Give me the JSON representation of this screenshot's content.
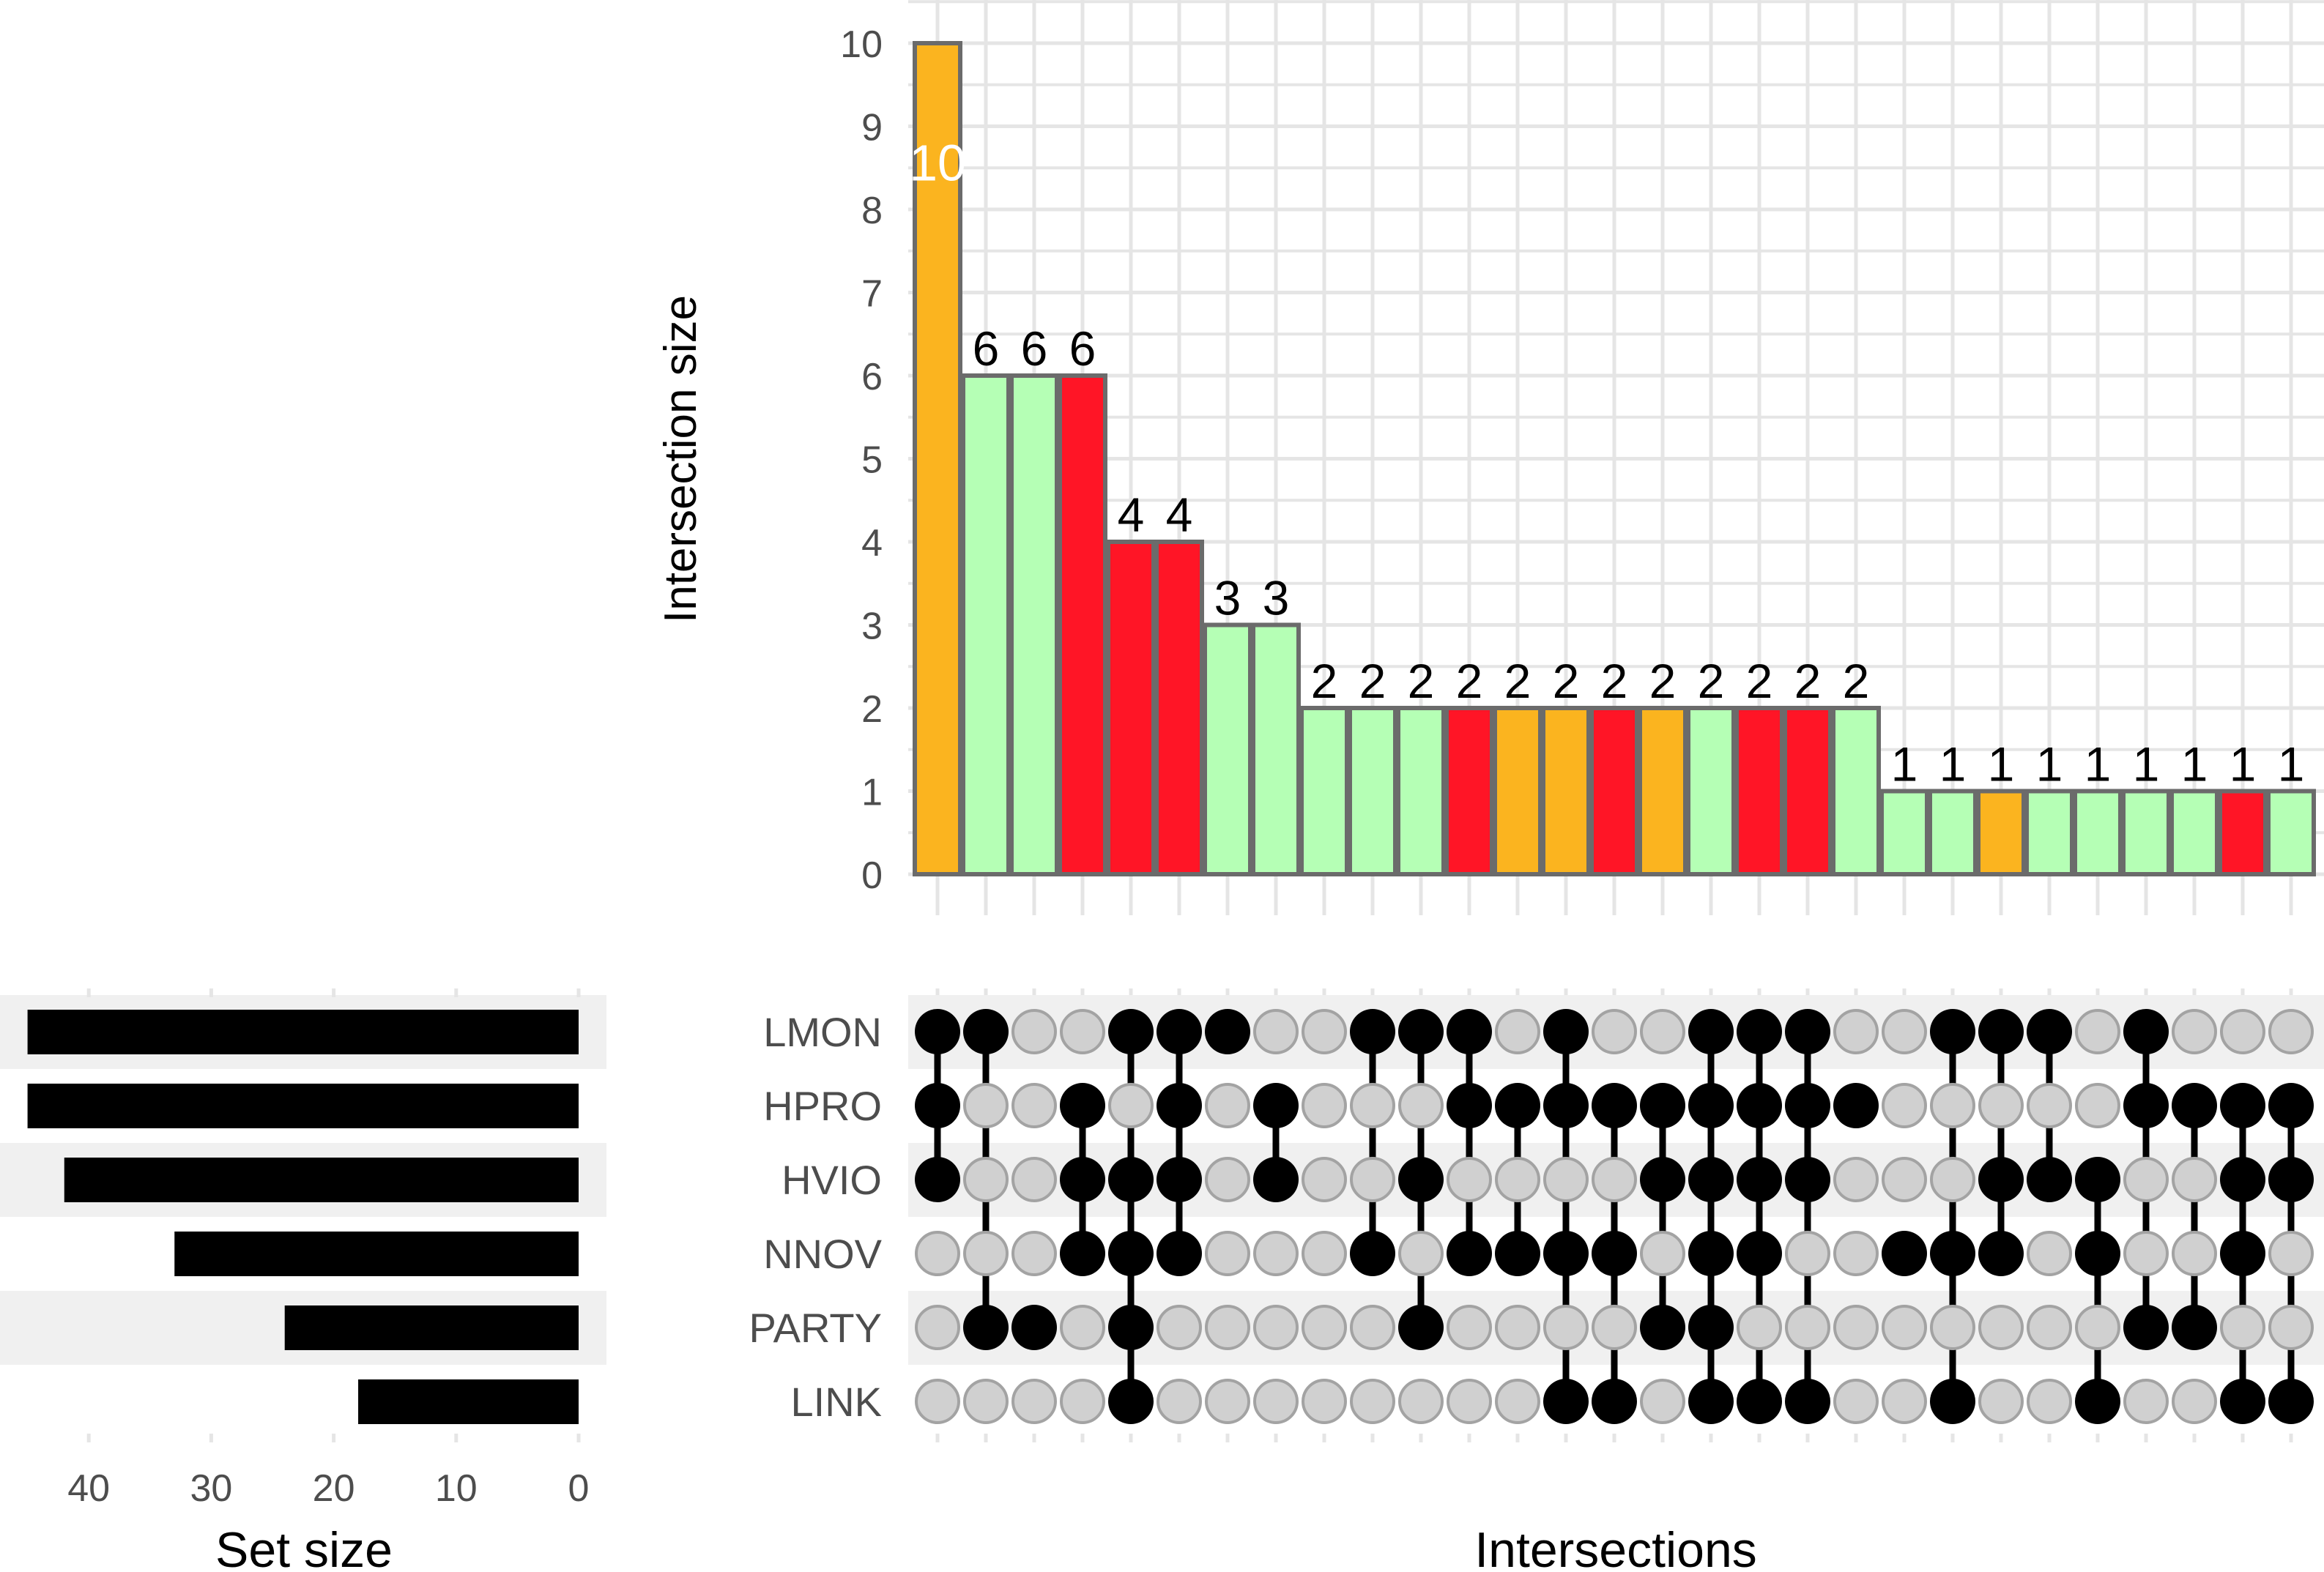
{
  "chart_data": {
    "type": "upset",
    "intersection_axis": {
      "ylabel": "Intersection size",
      "ylim": [
        0,
        10
      ],
      "ticks": [
        0,
        1,
        2,
        3,
        4,
        5,
        6,
        7,
        8,
        9,
        10
      ],
      "grid": true
    },
    "xlabel": "Intersections",
    "set_axis": {
      "xlabel": "Set size",
      "xlim": [
        0,
        47
      ],
      "ticks": [
        40,
        30,
        20,
        10,
        0
      ],
      "direction": "reversed"
    },
    "sets": [
      {
        "name": "LMON",
        "size": 45
      },
      {
        "name": "HPRO",
        "size": 45
      },
      {
        "name": "HVIO",
        "size": 42
      },
      {
        "name": "NNOV",
        "size": 33
      },
      {
        "name": "PARTY",
        "size": 24
      },
      {
        "name": "LINK",
        "size": 18
      }
    ],
    "colors": {
      "orange": "#FBB41F",
      "green": "#B5FFB5",
      "red": "#FF1526",
      "bar_border": "#6B6B6B",
      "active_dot": "#000000",
      "inactive_dot": "#D0D0D0"
    },
    "intersections": [
      {
        "value": 10,
        "color": "orange",
        "sets": [
          "LMON",
          "HPRO",
          "HVIO"
        ]
      },
      {
        "value": 6,
        "color": "green",
        "sets": [
          "LMON",
          "PARTY"
        ]
      },
      {
        "value": 6,
        "color": "green",
        "sets": [
          "PARTY"
        ]
      },
      {
        "value": 6,
        "color": "red",
        "sets": [
          "HPRO",
          "HVIO",
          "NNOV"
        ]
      },
      {
        "value": 4,
        "color": "red",
        "sets": [
          "LMON",
          "HVIO",
          "NNOV",
          "PARTY",
          "LINK"
        ]
      },
      {
        "value": 4,
        "color": "red",
        "sets": [
          "LMON",
          "HPRO",
          "HVIO",
          "NNOV"
        ]
      },
      {
        "value": 3,
        "color": "green",
        "sets": [
          "LMON"
        ]
      },
      {
        "value": 3,
        "color": "green",
        "sets": [
          "HPRO",
          "HVIO"
        ]
      },
      {
        "value": 2,
        "color": "green",
        "sets": []
      },
      {
        "value": 2,
        "color": "green",
        "sets": [
          "LMON",
          "NNOV"
        ]
      },
      {
        "value": 2,
        "color": "green",
        "sets": [
          "LMON",
          "HVIO",
          "PARTY"
        ]
      },
      {
        "value": 2,
        "color": "red",
        "sets": [
          "LMON",
          "HPRO",
          "NNOV"
        ]
      },
      {
        "value": 2,
        "color": "orange",
        "sets": [
          "HPRO",
          "NNOV"
        ]
      },
      {
        "value": 2,
        "color": "orange",
        "sets": [
          "LMON",
          "HPRO",
          "NNOV",
          "LINK"
        ]
      },
      {
        "value": 2,
        "color": "red",
        "sets": [
          "HPRO",
          "NNOV",
          "LINK"
        ]
      },
      {
        "value": 2,
        "color": "orange",
        "sets": [
          "HPRO",
          "HVIO",
          "PARTY"
        ]
      },
      {
        "value": 2,
        "color": "green",
        "sets": [
          "LMON",
          "HPRO",
          "HVIO",
          "NNOV",
          "PARTY",
          "LINK"
        ]
      },
      {
        "value": 2,
        "color": "red",
        "sets": [
          "LMON",
          "HPRO",
          "HVIO",
          "NNOV",
          "LINK"
        ]
      },
      {
        "value": 2,
        "color": "red",
        "sets": [
          "LMON",
          "HPRO",
          "HVIO",
          "LINK"
        ]
      },
      {
        "value": 2,
        "color": "green",
        "sets": [
          "HPRO"
        ]
      },
      {
        "value": 1,
        "color": "green",
        "sets": [
          "NNOV"
        ]
      },
      {
        "value": 1,
        "color": "green",
        "sets": [
          "LMON",
          "NNOV",
          "LINK"
        ]
      },
      {
        "value": 1,
        "color": "orange",
        "sets": [
          "LMON",
          "HVIO",
          "NNOV"
        ]
      },
      {
        "value": 1,
        "color": "green",
        "sets": [
          "LMON",
          "HVIO"
        ]
      },
      {
        "value": 1,
        "color": "green",
        "sets": [
          "HVIO",
          "NNOV",
          "LINK"
        ]
      },
      {
        "value": 1,
        "color": "green",
        "sets": [
          "LMON",
          "HPRO",
          "PARTY"
        ]
      },
      {
        "value": 1,
        "color": "green",
        "sets": [
          "HPRO",
          "PARTY"
        ]
      },
      {
        "value": 1,
        "color": "red",
        "sets": [
          "HPRO",
          "HVIO",
          "NNOV",
          "LINK"
        ]
      },
      {
        "value": 1,
        "color": "green",
        "sets": [
          "HPRO",
          "HVIO",
          "LINK"
        ]
      }
    ]
  }
}
